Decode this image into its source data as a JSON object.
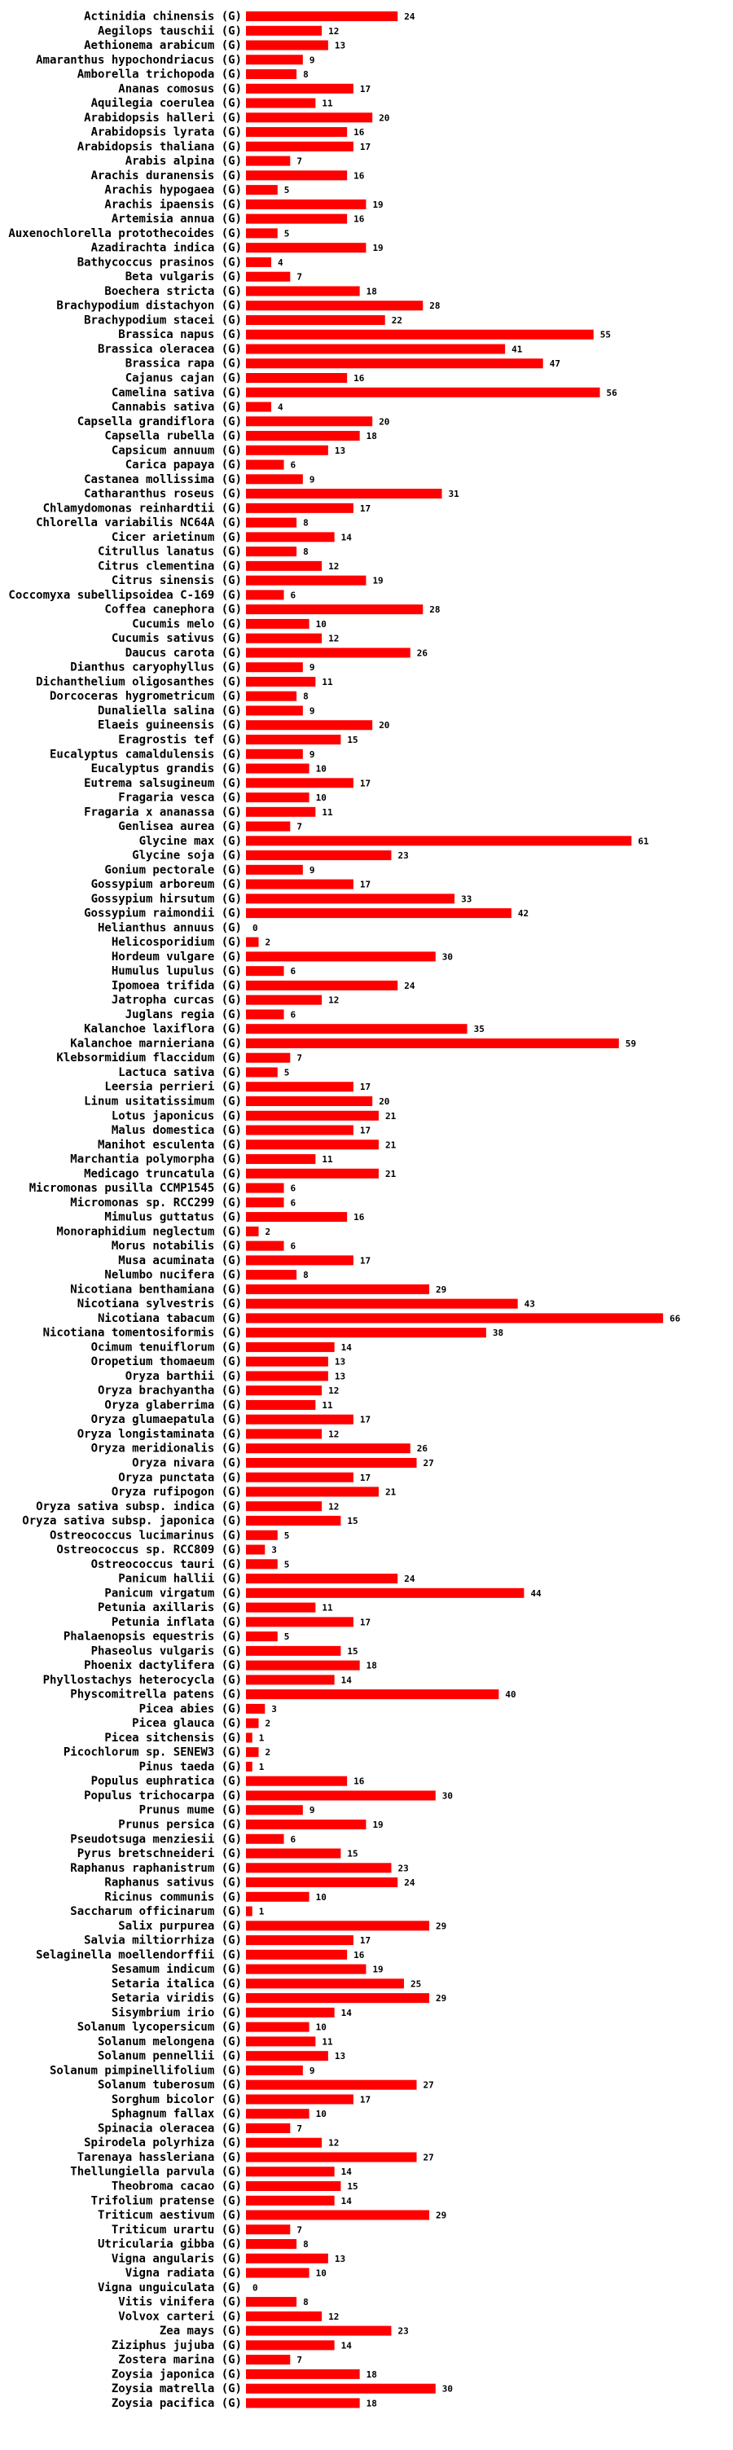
{
  "chart_data": {
    "type": "bar",
    "orientation": "horizontal",
    "title": "",
    "xlabel": "",
    "ylabel": "",
    "bar_color": "#ff0000",
    "grid": false,
    "xlim": [
      0,
      66
    ],
    "categories": [
      "Actinidia chinensis (G)",
      "Aegilops tauschii (G)",
      "Aethionema arabicum (G)",
      "Amaranthus hypochondriacus (G)",
      "Amborella trichopoda (G)",
      "Ananas comosus (G)",
      "Aquilegia coerulea (G)",
      "Arabidopsis halleri (G)",
      "Arabidopsis lyrata (G)",
      "Arabidopsis thaliana (G)",
      "Arabis alpina (G)",
      "Arachis duranensis (G)",
      "Arachis hypogaea (G)",
      "Arachis ipaensis (G)",
      "Artemisia annua (G)",
      "Auxenochlorella protothecoides (G)",
      "Azadirachta indica (G)",
      "Bathycoccus prasinos (G)",
      "Beta vulgaris (G)",
      "Boechera stricta (G)",
      "Brachypodium distachyon (G)",
      "Brachypodium stacei (G)",
      "Brassica napus (G)",
      "Brassica oleracea (G)",
      "Brassica rapa (G)",
      "Cajanus cajan (G)",
      "Camelina sativa (G)",
      "Cannabis sativa (G)",
      "Capsella grandiflora (G)",
      "Capsella rubella (G)",
      "Capsicum annuum (G)",
      "Carica papaya (G)",
      "Castanea mollissima (G)",
      "Catharanthus roseus (G)",
      "Chlamydomonas reinhardtii (G)",
      "Chlorella variabilis NC64A (G)",
      "Cicer arietinum (G)",
      "Citrullus lanatus (G)",
      "Citrus clementina (G)",
      "Citrus sinensis (G)",
      "Coccomyxa subellipsoidea C-169 (G)",
      "Coffea canephora (G)",
      "Cucumis melo (G)",
      "Cucumis sativus (G)",
      "Daucus carota (G)",
      "Dianthus caryophyllus (G)",
      "Dichanthelium oligosanthes (G)",
      "Dorcoceras hygrometricum (G)",
      "Dunaliella salina (G)",
      "Elaeis guineensis (G)",
      "Eragrostis tef (G)",
      "Eucalyptus camaldulensis (G)",
      "Eucalyptus grandis (G)",
      "Eutrema salsugineum (G)",
      "Fragaria vesca (G)",
      "Fragaria x ananassa (G)",
      "Genlisea aurea (G)",
      "Glycine max (G)",
      "Glycine soja (G)",
      "Gonium pectorale (G)",
      "Gossypium arboreum (G)",
      "Gossypium hirsutum (G)",
      "Gossypium raimondii (G)",
      "Helianthus annuus (G)",
      "Helicosporidium (G)",
      "Hordeum vulgare (G)",
      "Humulus lupulus (G)",
      "Ipomoea trifida (G)",
      "Jatropha curcas (G)",
      "Juglans regia (G)",
      "Kalanchoe laxiflora (G)",
      "Kalanchoe marnieriana (G)",
      "Klebsormidium flaccidum (G)",
      "Lactuca sativa (G)",
      "Leersia perrieri (G)",
      "Linum usitatissimum (G)",
      "Lotus japonicus (G)",
      "Malus domestica (G)",
      "Manihot esculenta (G)",
      "Marchantia polymorpha (G)",
      "Medicago truncatula (G)",
      "Micromonas pusilla CCMP1545 (G)",
      "Micromonas sp. RCC299 (G)",
      "Mimulus guttatus (G)",
      "Monoraphidium neglectum (G)",
      "Morus notabilis (G)",
      "Musa acuminata (G)",
      "Nelumbo nucifera (G)",
      "Nicotiana benthamiana (G)",
      "Nicotiana sylvestris (G)",
      "Nicotiana tabacum (G)",
      "Nicotiana tomentosiformis (G)",
      "Ocimum tenuiflorum (G)",
      "Oropetium thomaeum (G)",
      "Oryza barthii (G)",
      "Oryza brachyantha (G)",
      "Oryza glaberrima (G)",
      "Oryza glumaepatula (G)",
      "Oryza longistaminata (G)",
      "Oryza meridionalis (G)",
      "Oryza nivara (G)",
      "Oryza punctata (G)",
      "Oryza rufipogon (G)",
      "Oryza sativa subsp. indica (G)",
      "Oryza sativa subsp. japonica (G)",
      "Ostreococcus lucimarinus (G)",
      "Ostreococcus sp. RCC809 (G)",
      "Ostreococcus tauri (G)",
      "Panicum hallii (G)",
      "Panicum virgatum (G)",
      "Petunia axillaris (G)",
      "Petunia inflata (G)",
      "Phalaenopsis equestris (G)",
      "Phaseolus vulgaris (G)",
      "Phoenix dactylifera (G)",
      "Phyllostachys heterocycla (G)",
      "Physcomitrella patens (G)",
      "Picea abies (G)",
      "Picea glauca (G)",
      "Picea sitchensis (G)",
      "Picochlorum sp. SENEW3 (G)",
      "Pinus taeda (G)",
      "Populus euphratica (G)",
      "Populus trichocarpa (G)",
      "Prunus mume (G)",
      "Prunus persica (G)",
      "Pseudotsuga menziesii (G)",
      "Pyrus bretschneideri (G)",
      "Raphanus raphanistrum (G)",
      "Raphanus sativus (G)",
      "Ricinus communis (G)",
      "Saccharum officinarum (G)",
      "Salix purpurea (G)",
      "Salvia miltiorrhiza (G)",
      "Selaginella moellendorffii (G)",
      "Sesamum indicum (G)",
      "Setaria italica (G)",
      "Setaria viridis (G)",
      "Sisymbrium irio (G)",
      "Solanum lycopersicum (G)",
      "Solanum melongena (G)",
      "Solanum pennellii (G)",
      "Solanum pimpinellifolium (G)",
      "Solanum tuberosum (G)",
      "Sorghum bicolor (G)",
      "Sphagnum fallax (G)",
      "Spinacia oleracea (G)",
      "Spirodela polyrhiza (G)",
      "Tarenaya hassleriana (G)",
      "Thellungiella parvula (G)",
      "Theobroma cacao (G)",
      "Trifolium pratense (G)",
      "Triticum aestivum (G)",
      "Triticum urartu (G)",
      "Utricularia gibba (G)",
      "Vigna angularis (G)",
      "Vigna radiata (G)",
      "Vigna unguiculata (G)",
      "Vitis vinifera (G)",
      "Volvox carteri (G)",
      "Zea mays (G)",
      "Ziziphus jujuba (G)",
      "Zostera marina (G)",
      "Zoysia japonica (G)",
      "Zoysia matrella (G)",
      "Zoysia pacifica (G)"
    ],
    "values": [
      24,
      12,
      13,
      9,
      8,
      17,
      11,
      20,
      16,
      17,
      7,
      16,
      5,
      19,
      16,
      5,
      19,
      4,
      7,
      18,
      28,
      22,
      55,
      41,
      47,
      16,
      56,
      4,
      20,
      18,
      13,
      6,
      9,
      31,
      17,
      8,
      14,
      8,
      12,
      19,
      6,
      28,
      10,
      12,
      26,
      9,
      11,
      8,
      9,
      20,
      15,
      9,
      10,
      17,
      10,
      11,
      7,
      61,
      23,
      9,
      17,
      33,
      42,
      0,
      2,
      30,
      6,
      24,
      12,
      6,
      35,
      59,
      7,
      5,
      17,
      20,
      21,
      17,
      21,
      11,
      21,
      6,
      6,
      16,
      2,
      6,
      17,
      8,
      29,
      43,
      66,
      38,
      14,
      13,
      13,
      12,
      11,
      17,
      12,
      26,
      27,
      17,
      21,
      12,
      15,
      5,
      3,
      5,
      24,
      44,
      11,
      17,
      5,
      15,
      18,
      14,
      40,
      3,
      2,
      1,
      2,
      1,
      16,
      30,
      9,
      19,
      6,
      15,
      23,
      24,
      10,
      1,
      29,
      17,
      16,
      19,
      25,
      29,
      14,
      10,
      11,
      13,
      9,
      27,
      17,
      10,
      7,
      12,
      27,
      14,
      15,
      14,
      29,
      7,
      8,
      13,
      10,
      0,
      8,
      12,
      23,
      14,
      7,
      18,
      30,
      18
    ]
  }
}
